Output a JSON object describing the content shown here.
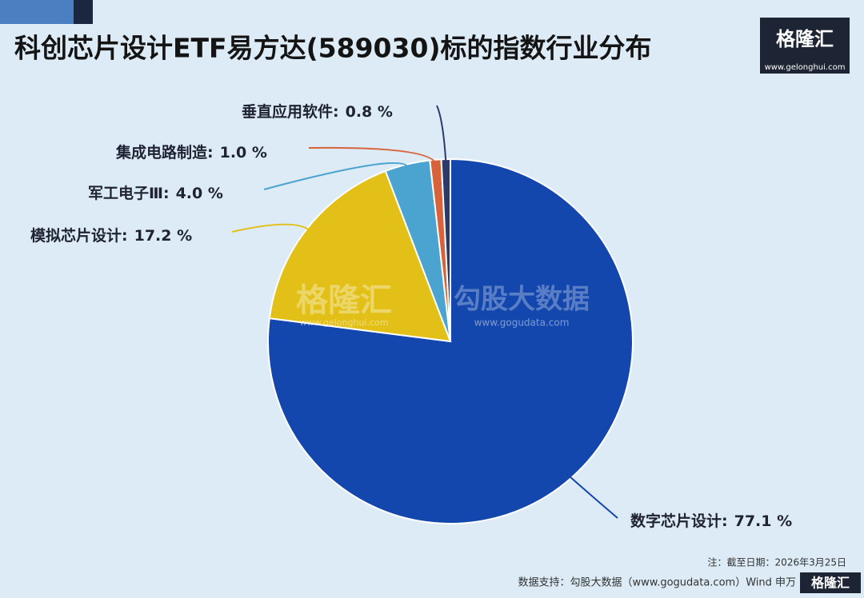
{
  "chart_data": {
    "type": "pie",
    "title": "科创芯片设计ETF易方达(589030)标的指数行业分布",
    "categories": [
      "数字芯片设计:",
      "模拟芯片设计:",
      "军工电子Ⅲ:",
      "集成电路制造:",
      "垂直应用软件:"
    ],
    "values": [
      77.1,
      17.2,
      4.0,
      1.0,
      0.8
    ],
    "value_labels": [
      "77.1 %",
      "17.2 %",
      "4.0 %",
      "1.0 %",
      "0.8 %"
    ],
    "colors": [
      "#1347ad",
      "#e2c017",
      "#4ba3cf",
      "#d8633b",
      "#2b3a6b"
    ]
  },
  "logo": {
    "name": "格隆汇",
    "url": "www.gelonghui.com"
  },
  "watermarks": {
    "brand1": "格隆汇",
    "url1": "www.gelonghui.com",
    "brand2": "勾股大数据",
    "url2": "www.gogudata.com"
  },
  "footer": {
    "note": "注：截至日期：2026年3月25日",
    "source": "数据支持：勾股大数据（www.gogudata.com）Wind 申万"
  }
}
